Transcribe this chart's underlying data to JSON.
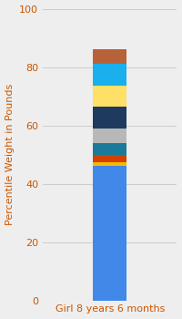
{
  "category": "Girl 8 years 6 months",
  "ylabel": "Percentile Weight in Pounds",
  "ylim": [
    0,
    100
  ],
  "yticks": [
    0,
    20,
    40,
    60,
    80,
    100
  ],
  "segments": [
    {
      "value": 46,
      "color": "#4188E8"
    },
    {
      "value": 1.5,
      "color": "#F5B800"
    },
    {
      "value": 2.5,
      "color": "#D44000"
    },
    {
      "value": 4.0,
      "color": "#1A7A9A"
    },
    {
      "value": 5.0,
      "color": "#B8B8B8"
    },
    {
      "value": 7.5,
      "color": "#1E3A5F"
    },
    {
      "value": 7.0,
      "color": "#FFE066"
    },
    {
      "value": 7.5,
      "color": "#1AAFED"
    },
    {
      "value": 5.0,
      "color": "#B8623A"
    }
  ],
  "bg_color": "#EEEEEE",
  "bar_width": 0.35,
  "ylabel_fontsize": 8,
  "tick_fontsize": 8,
  "tick_color": "#CC5500",
  "ylabel_color": "#CC5500",
  "grid_color": "#CCCCCC",
  "xlim": [
    -0.7,
    0.7
  ]
}
